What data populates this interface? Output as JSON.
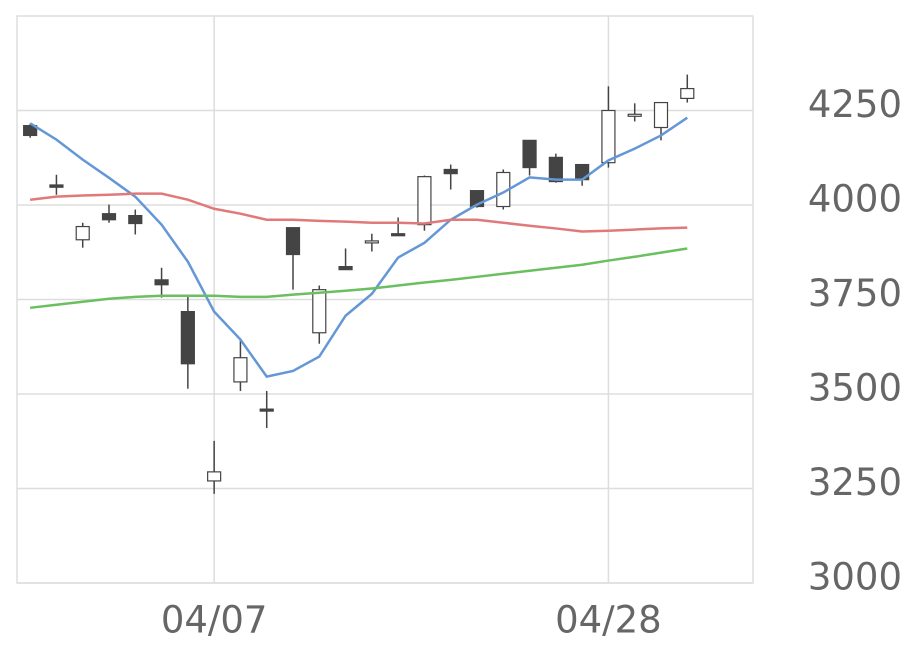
{
  "chart_data": {
    "type": "candlestick",
    "categories": [
      null,
      null,
      null,
      null,
      null,
      null,
      null,
      "04/07",
      null,
      null,
      null,
      null,
      null,
      null,
      null,
      null,
      null,
      null,
      null,
      null,
      null,
      null,
      "04/28",
      null,
      null,
      null
    ],
    "open": [
      4210,
      4053,
      3908,
      3977,
      3972,
      3802,
      3718,
      3270,
      3532,
      3460,
      3940,
      3662,
      3837,
      3901,
      3924,
      3948,
      4094,
      4038,
      3996,
      4171,
      4126,
      4107,
      4112,
      4236,
      4205,
      4282
    ],
    "high": [
      4215,
      4080,
      3953,
      4001,
      3988,
      3834,
      3757,
      3376,
      3644,
      3508,
      3940,
      3787,
      3885,
      3924,
      3967,
      4078,
      4107,
      4038,
      4094,
      4171,
      4136,
      4107,
      4314,
      4269,
      4271,
      4345
    ],
    "low": [
      4178,
      4027,
      3887,
      3953,
      3922,
      3755,
      3514,
      3236,
      3508,
      3410,
      3776,
      3633,
      3829,
      3877,
      3919,
      3932,
      4041,
      3993,
      3988,
      4078,
      4059,
      4051,
      4099,
      4221,
      4171,
      4271
    ],
    "close": [
      4184,
      4047,
      3943,
      3961,
      3951,
      3789,
      3580,
      3294,
      3596,
      3456,
      3869,
      3776,
      3829,
      3905,
      3919,
      4075,
      4083,
      3996,
      4086,
      4099,
      4062,
      4067,
      4250,
      4240,
      4271,
      4308
    ],
    "up_color": "#ffffff",
    "down_color": "#444444",
    "wick_color": "#444444",
    "lines": [
      {
        "color": "#6497d6",
        "values": [
          4216,
          4173,
          4120,
          4072,
          4022,
          3948,
          3850,
          3718,
          3644,
          3546,
          3561,
          3599,
          3707,
          3765,
          3861,
          3900,
          3961,
          4001,
          4033,
          4073,
          4067,
          4067,
          4118,
          4149,
          4184,
          4231
        ]
      },
      {
        "color": "#e07a7a",
        "values": [
          4014,
          4022,
          4025,
          4027,
          4030,
          4030,
          4014,
          3990,
          3977,
          3961,
          3961,
          3958,
          3956,
          3953,
          3953,
          3951,
          3961,
          3961,
          3953,
          3945,
          3938,
          3930,
          3932,
          3935,
          3938,
          3940
        ]
      },
      {
        "color": "#6abf5f",
        "values": [
          3728,
          3736,
          3744,
          3752,
          3757,
          3760,
          3760,
          3760,
          3757,
          3757,
          3763,
          3768,
          3773,
          3779,
          3787,
          3795,
          3802,
          3810,
          3818,
          3826,
          3834,
          3842,
          3853,
          3863,
          3874,
          3885
        ]
      }
    ],
    "ylim": [
      3000,
      4500
    ],
    "yticks": [
      3000,
      3250,
      3500,
      3750,
      4000,
      4250
    ],
    "grid": true
  }
}
